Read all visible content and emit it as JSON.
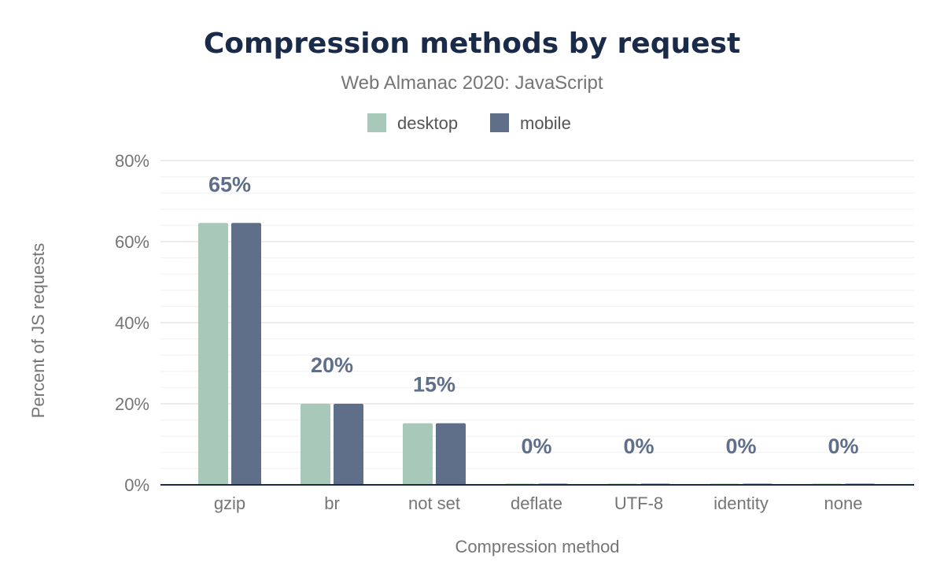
{
  "chart_data": {
    "type": "bar",
    "title": "Compression methods by request",
    "subtitle": "Web Almanac 2020: JavaScript",
    "xlabel": "Compression method",
    "ylabel": "Percent of JS requests",
    "categories": [
      "gzip",
      "br",
      "not set",
      "deflate",
      "UTF-8",
      "identity",
      "none"
    ],
    "series": [
      {
        "name": "desktop",
        "color": "#a8c8b9",
        "values": [
          64.6,
          20.0,
          15.2,
          0.02,
          0.01,
          0.01,
          0.0
        ]
      },
      {
        "name": "mobile",
        "color": "#5f6f8a",
        "values": [
          64.6,
          20.0,
          15.2,
          0.02,
          0.01,
          0.01,
          0.0
        ]
      }
    ],
    "data_labels": [
      "65%",
      "20%",
      "15%",
      "0%",
      "0%",
      "0%",
      "0%"
    ],
    "ylim": [
      0,
      80
    ],
    "yticks": [
      "0%",
      "20%",
      "40%",
      "60%",
      "80%"
    ],
    "grid": true,
    "legend": "top-center"
  }
}
